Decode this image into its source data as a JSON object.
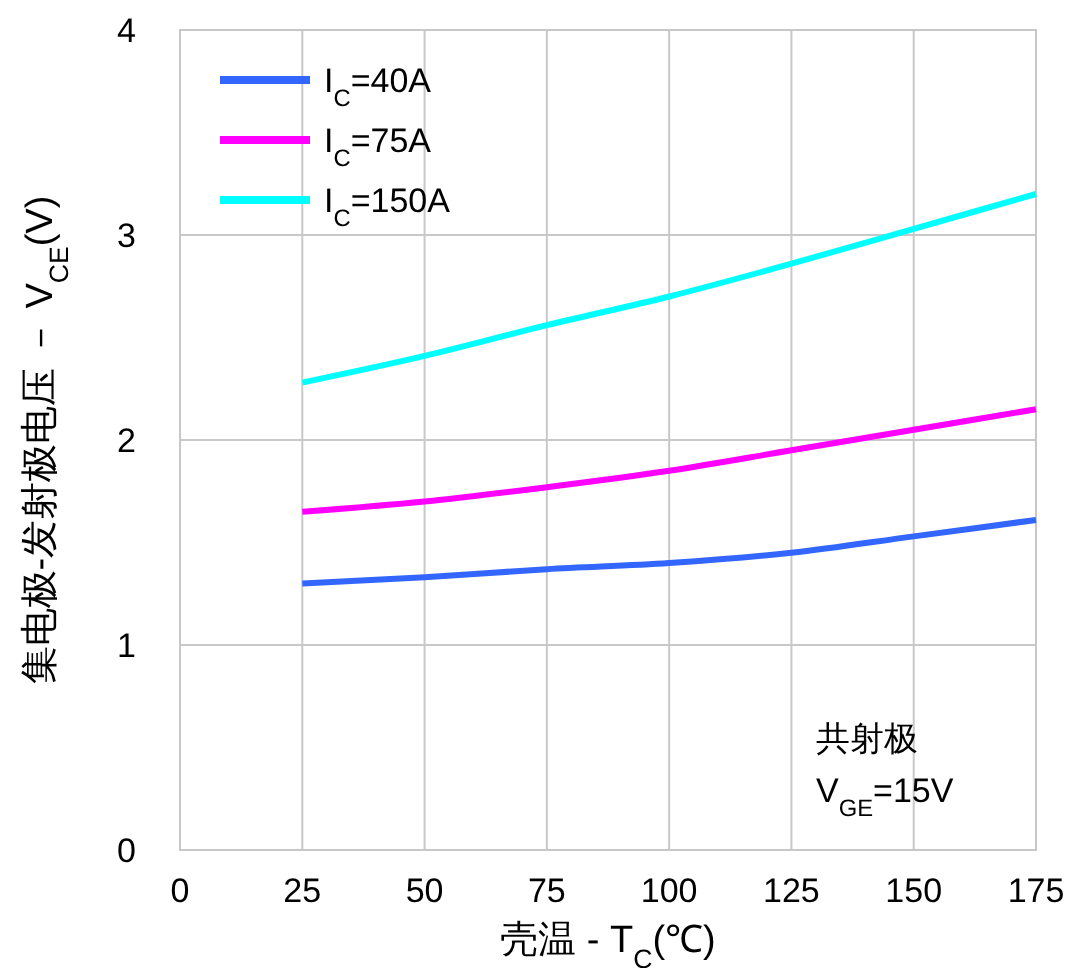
{
  "chart_data": {
    "type": "line",
    "xlabel": "壳温 - T$_{C}$(℃)",
    "ylabel": "集电极-发射极电压 － V$_{CE}$(V)",
    "x": [
      25,
      50,
      75,
      100,
      125,
      150,
      175
    ],
    "series": [
      {
        "name": "I$_{C}$=40A",
        "color": "#3366ff",
        "values": [
          1.3,
          1.33,
          1.37,
          1.4,
          1.45,
          1.53,
          1.61
        ]
      },
      {
        "name": "I$_{C}$=75A",
        "color": "#ff00ff",
        "values": [
          1.65,
          1.7,
          1.77,
          1.85,
          1.95,
          2.05,
          2.15
        ]
      },
      {
        "name": "I$_{C}$=150A",
        "color": "#00ffff",
        "values": [
          2.28,
          2.41,
          2.56,
          2.7,
          2.86,
          3.03,
          3.2
        ]
      }
    ],
    "xlim": [
      0,
      175
    ],
    "xticks": [
      0,
      25,
      50,
      75,
      100,
      125,
      150,
      175
    ],
    "ylim": [
      0,
      4
    ],
    "yticks": [
      0,
      1,
      2,
      3,
      4
    ],
    "grid": true,
    "legend": "top left",
    "marker": "none",
    "line_style": "solid",
    "annotations": [
      "共射极",
      "V$_{GE}$=15V"
    ]
  }
}
